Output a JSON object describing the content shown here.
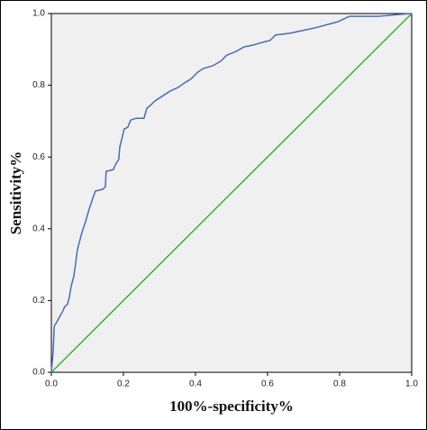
{
  "chart_data": {
    "type": "line",
    "xlabel": "100%-specificity%",
    "ylabel": "Sensitivity%",
    "xlim": [
      0,
      1
    ],
    "ylim": [
      0,
      1
    ],
    "xticks": [
      {
        "value": 0,
        "label": "0.0"
      },
      0.2,
      0.4,
      0.6,
      0.8,
      {
        "value": 1,
        "label": "1.0"
      }
    ],
    "yticks": [
      {
        "value": 0,
        "label": "0.0"
      },
      0.2,
      0.4,
      0.6,
      0.8,
      {
        "value": 1,
        "label": "1.0"
      }
    ],
    "series": [
      {
        "color": "#4a6cb5",
        "x": [
          0,
          0.005,
          0.008,
          0.015,
          0.022,
          0.032,
          0.037,
          0.045,
          0.05,
          0.055,
          0.062,
          0.067,
          0.072,
          0.077,
          0.085,
          0.095,
          0.105,
          0.115,
          0.122,
          0.142,
          0.15,
          0.152,
          0.172,
          0.18,
          0.187,
          0.19,
          0.197,
          0.202,
          0.212,
          0.22,
          0.235,
          0.257,
          0.265,
          0.275,
          0.287,
          0.307,
          0.33,
          0.352,
          0.37,
          0.387,
          0.407,
          0.422,
          0.447,
          0.47,
          0.487,
          0.512,
          0.535,
          0.56,
          0.587,
          0.607,
          0.622,
          0.662,
          0.732,
          0.795,
          0.827,
          0.907,
          0.957,
          1
        ],
        "values": [
          0,
          0.058,
          0.128,
          0.14,
          0.153,
          0.171,
          0.183,
          0.19,
          0.21,
          0.24,
          0.266,
          0.3,
          0.34,
          0.36,
          0.39,
          0.42,
          0.455,
          0.485,
          0.505,
          0.51,
          0.517,
          0.56,
          0.565,
          0.583,
          0.593,
          0.628,
          0.656,
          0.678,
          0.683,
          0.703,
          0.708,
          0.708,
          0.736,
          0.744,
          0.756,
          0.769,
          0.784,
          0.794,
          0.807,
          0.817,
          0.837,
          0.847,
          0.854,
          0.867,
          0.884,
          0.894,
          0.907,
          0.912,
          0.92,
          0.925,
          0.94,
          0.945,
          0.96,
          0.977,
          0.992,
          0.992,
          0.997,
          1
        ]
      },
      {
        "color": "#2eb82e",
        "x": [
          0,
          1
        ],
        "values": [
          0,
          1
        ]
      }
    ]
  }
}
